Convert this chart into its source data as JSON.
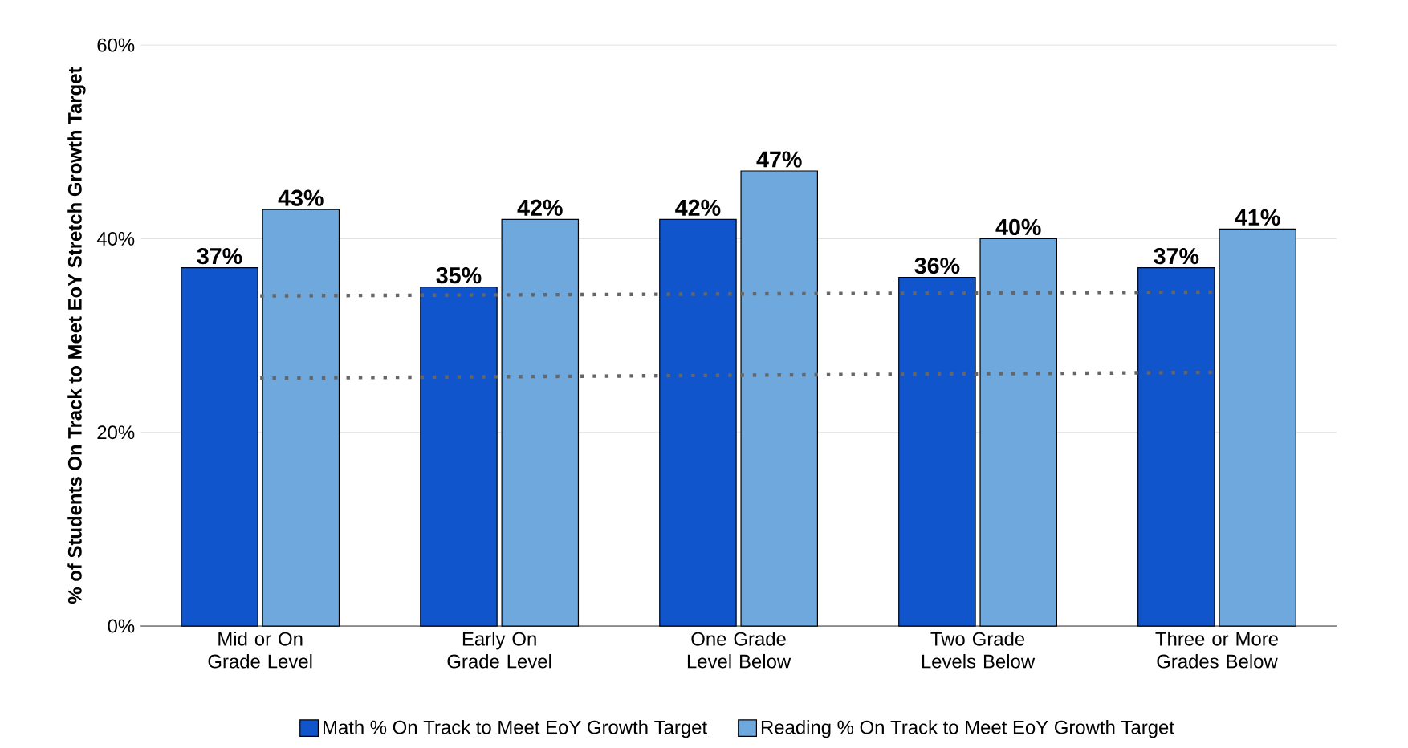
{
  "chart_data": {
    "type": "bar",
    "ylabel": "% of Students On Track to Meet EoY Stretch Growth Target",
    "categories": [
      "Mid or On Grade Level",
      "Early On Grade Level",
      "One Grade Level Below",
      "Two Grade Levels Below",
      "Three or More Grades Below"
    ],
    "series": [
      {
        "name": "Math % On Track to Meet EoY Growth Target",
        "color": "#1155cc",
        "values": [
          37,
          35,
          42,
          36,
          37
        ],
        "value_labels": [
          "37%",
          "35%",
          "42%",
          "36%",
          "37%"
        ]
      },
      {
        "name": "Reading % On Track to Meet EoY Growth Target",
        "color": "#6fa8dc",
        "values": [
          43,
          42,
          47,
          40,
          41
        ],
        "value_labels": [
          "43%",
          "42%",
          "47%",
          "40%",
          "41%"
        ]
      },
      {
        "type": "line",
        "color": "#666666",
        "line_style": "dotted",
        "values": [
          34.1,
          34.2,
          34.3,
          34.4,
          34.5
        ]
      },
      {
        "type": "line",
        "color": "#666666",
        "line_style": "dotted",
        "values": [
          25.6,
          25.75,
          25.9,
          26.05,
          26.2
        ]
      }
    ],
    "ylim": [
      0,
      60
    ],
    "yticks": [
      {
        "value": 0,
        "label": "0%"
      },
      {
        "value": 20,
        "label": "20%"
      },
      {
        "value": 40,
        "label": "40%"
      },
      {
        "value": 60,
        "label": "60%"
      }
    ],
    "grid": "y",
    "legend": "bottom"
  }
}
